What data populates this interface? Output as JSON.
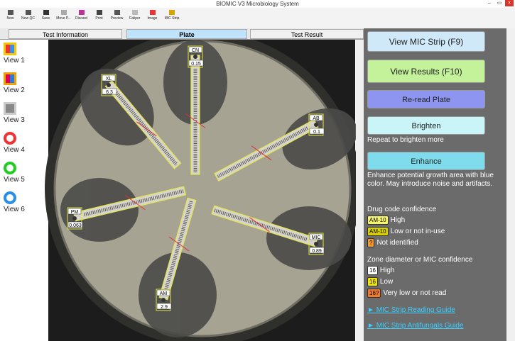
{
  "window": {
    "title": "BIOMIC V3 Microbiology System"
  },
  "toolbar": [
    "New",
    "New QC",
    "Save",
    "Move P...",
    "Discard",
    "Print",
    "Preview",
    "Caliper",
    "Image",
    "MIC Strip"
  ],
  "tabs": [
    "Test Information",
    "Plate",
    "Test Result"
  ],
  "views": [
    "View 1",
    "View 2",
    "View 3",
    "View 4",
    "View 5",
    "View 6"
  ],
  "plate": {
    "strips": [
      {
        "code": "CN",
        "value": 0.15
      },
      {
        "code": "XL",
        "value": 6.3
      },
      {
        "code": "AB",
        "value": 0.1
      },
      {
        "code": "PM",
        "value": 0.063
      },
      {
        "code": "MIC",
        "value": 0.89
      },
      {
        "code": "AM",
        "value": 2.9
      }
    ]
  },
  "panel": {
    "buttons": [
      "View MIC Strip (F9)",
      "View Results (F10)",
      "Re-read Plate",
      "Brighten",
      "Enhance"
    ],
    "brighten_note": "Repeat to brighten more",
    "enhance_note": "Enhance potential growth area with blue color. May introduce noise and artifacts.",
    "drug_heading": "Drug code confidence",
    "drug_legend": [
      {
        "badge": "AM-10",
        "text": "High"
      },
      {
        "badge": "AM-10",
        "text": "Low or not in-use"
      },
      {
        "badge": "?",
        "text": "Not identified"
      }
    ],
    "zone_heading": "Zone diameter or MIC confidence",
    "zone_legend": [
      {
        "badge": 16,
        "text": "High"
      },
      {
        "badge": 16,
        "text": "Low"
      },
      {
        "badge": "16?",
        "text": "Very low or not read"
      }
    ],
    "links": [
      "MIC Strip Reading Guide",
      "MIC Strip Antifungals Guide"
    ]
  }
}
